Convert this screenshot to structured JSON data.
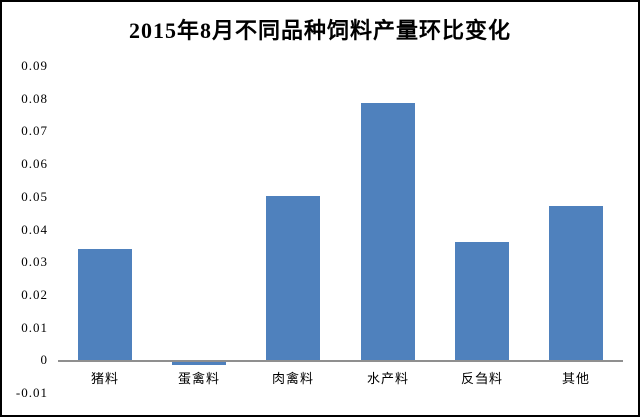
{
  "chart_data": {
    "type": "bar",
    "title": "2015年8月不同品种饲料产量环比变化",
    "categories": [
      "猪料",
      "蛋禽料",
      "肉禽料",
      "水产料",
      "反刍料",
      "其他"
    ],
    "values": [
      0.034,
      -0.001,
      0.05,
      0.0785,
      0.036,
      0.047
    ],
    "xlabel": "",
    "ylabel": "",
    "ylim": [
      -0.01,
      0.09
    ],
    "ytick_labels": [
      "0.09",
      "0.08",
      "0.07",
      "0.06",
      "0.05",
      "0.04",
      "0.03",
      "0.02",
      "0.01",
      "0",
      "-0.01"
    ],
    "grid": false,
    "legend_position": "none",
    "colors": {
      "bar": "#4F81BD",
      "axis_line": "#8F8F8F",
      "text": "#000000",
      "background": "#FFFFFF",
      "frame_border": "#000000"
    }
  }
}
